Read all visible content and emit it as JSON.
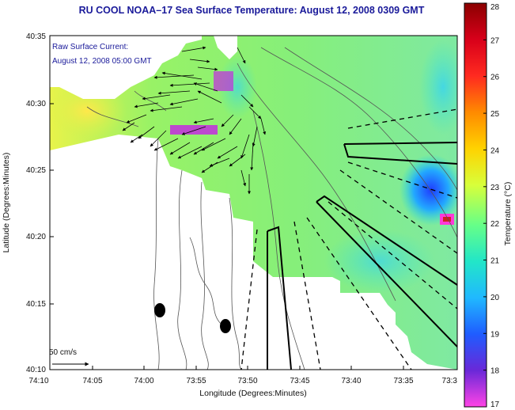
{
  "title": "RU COOL  NOAA–17  Sea Surface Temperature:  August 12, 2008 0309 GMT",
  "annotation": {
    "line1": "Raw Surface Current:",
    "line2": "August 12, 2008 05:00 GMT"
  },
  "scale": {
    "label": "50 cm/s"
  },
  "axes": {
    "xlabel": "Longitude (Degrees:Minutes)",
    "ylabel": "Latitude (Degrees:Minutes)",
    "xticks": [
      "74:10",
      "74:05",
      "74:00",
      "73:55",
      "73:50",
      "73:45",
      "73:40",
      "73:35",
      "73:3"
    ],
    "yticks": [
      "40:35",
      "40:30",
      "40:25",
      "40:20",
      "40:15",
      "40:10"
    ]
  },
  "colorbar": {
    "label": "Temperature (°C)",
    "ticks": [
      "28",
      "27",
      "26",
      "25",
      "24",
      "23",
      "22",
      "21",
      "20",
      "19",
      "18",
      "17"
    ],
    "min": 17,
    "max": 28
  },
  "colors": {
    "title": "#1a1a9a",
    "land": "#ffffff",
    "background": "#ffffff"
  }
}
